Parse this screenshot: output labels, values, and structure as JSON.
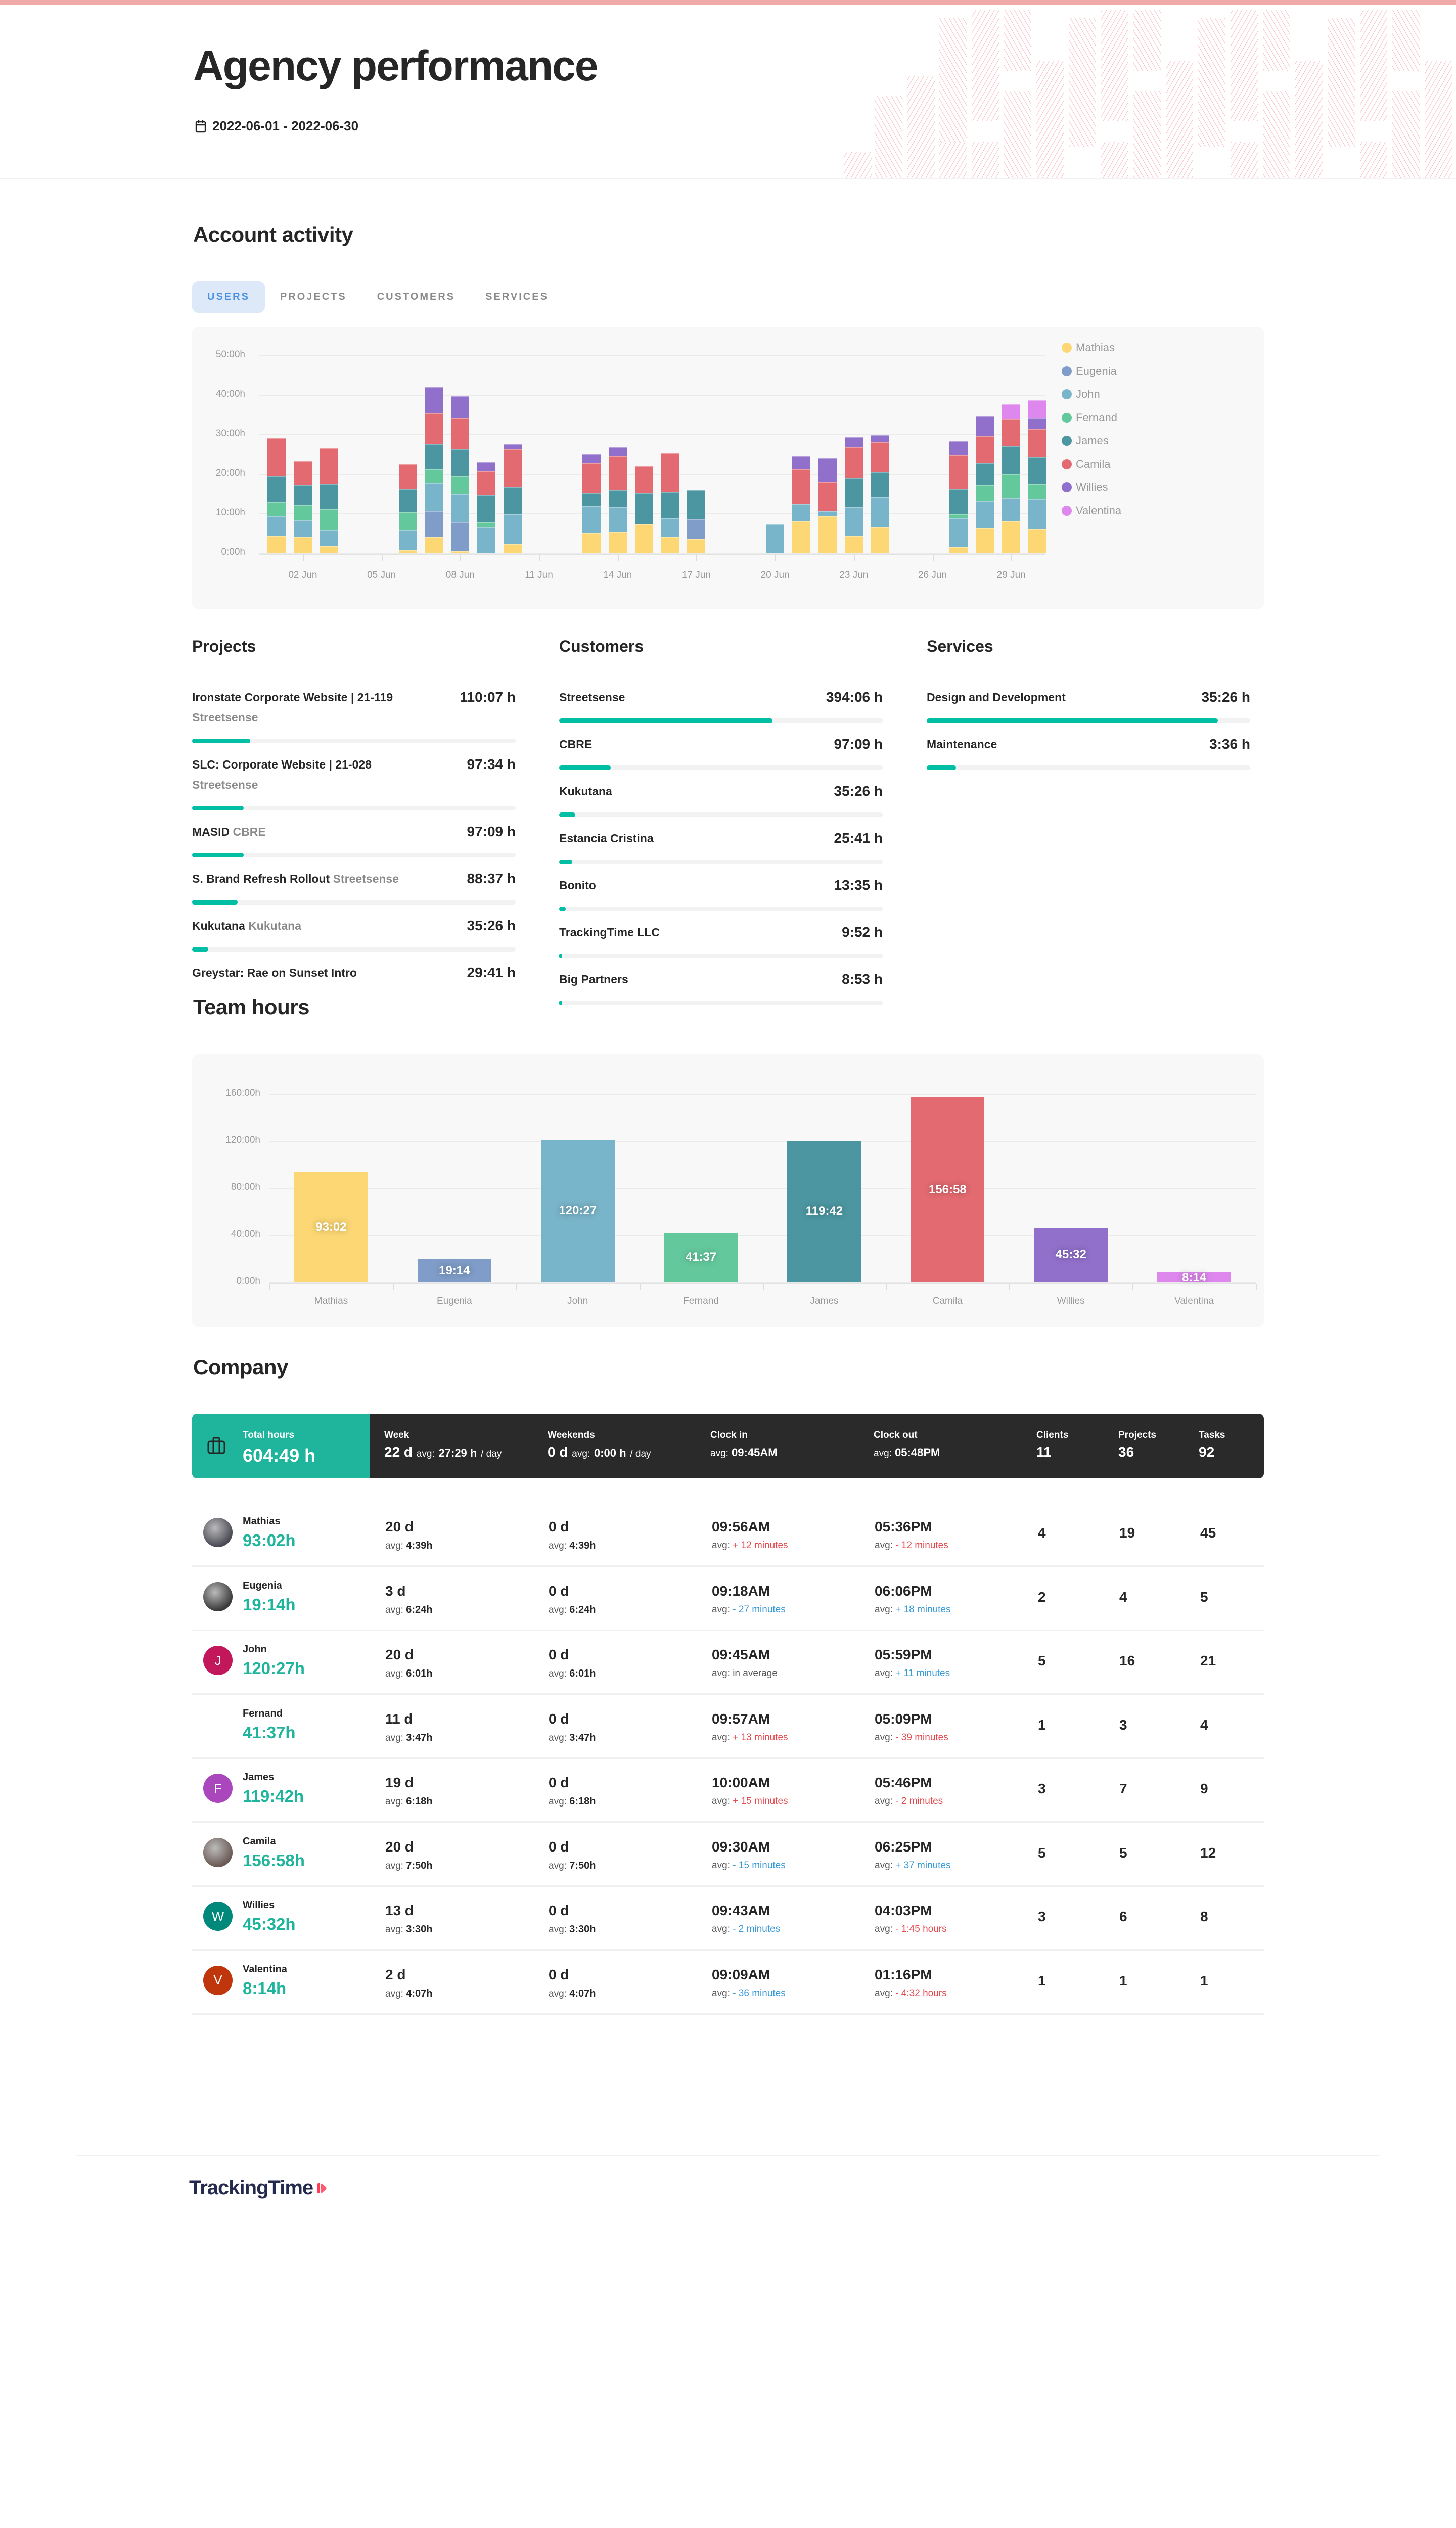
{
  "header": {
    "title": "Agency performance",
    "date_range": "2022-06-01 - 2022-06-30",
    "accent_color": "#f0aaaa"
  },
  "account_activity": {
    "title": "Account activity",
    "tabs": [
      {
        "label": "USERS",
        "active": true
      },
      {
        "label": "PROJECTS",
        "active": false
      },
      {
        "label": "CUSTOMERS",
        "active": false
      },
      {
        "label": "SERVICES",
        "active": false
      }
    ]
  },
  "lists": {
    "projects": {
      "title": "Projects",
      "items": [
        {
          "name": "Ironstate Corporate Website | 21-119",
          "client": "Streetsense",
          "value": "110:07 h",
          "pct": 18
        },
        {
          "name": "SLC: Corporate Website | 21-028",
          "client": "Streetsense",
          "value": "97:34 h",
          "pct": 16
        },
        {
          "name": "MASID",
          "client": "CBRE",
          "value": "97:09 h",
          "pct": 16
        },
        {
          "name": "S. Brand Refresh Rollout",
          "client": "Streetsense",
          "value": "88:37 h",
          "pct": 14
        },
        {
          "name": "Kukutana",
          "client": "Kukutana",
          "value": "35:26 h",
          "pct": 5
        },
        {
          "name": "Greystar: Rae on Sunset Intro",
          "client": "",
          "value": "29:41 h",
          "pct": 4
        }
      ]
    },
    "customers": {
      "title": "Customers",
      "items": [
        {
          "name": "Streetsense",
          "value": "394:06 h",
          "pct": 66
        },
        {
          "name": "CBRE",
          "value": "97:09 h",
          "pct": 16
        },
        {
          "name": "Kukutana",
          "value": "35:26 h",
          "pct": 5
        },
        {
          "name": "Estancia Cristina",
          "value": "25:41 h",
          "pct": 4
        },
        {
          "name": "Bonito",
          "value": "13:35 h",
          "pct": 2
        },
        {
          "name": "TrackingTime LLC",
          "value": "9:52 h",
          "pct": 1
        },
        {
          "name": "Big Partners",
          "value": "8:53 h",
          "pct": 1
        }
      ]
    },
    "services": {
      "title": "Services",
      "items": [
        {
          "name": "Design and Development",
          "value": "35:26 h",
          "pct": 90
        },
        {
          "name": "Maintenance",
          "value": "3:36 h",
          "pct": 9
        }
      ]
    }
  },
  "team_hours": {
    "title": "Team hours"
  },
  "company": {
    "title": "Company",
    "summary": {
      "total_label": "Total hours",
      "total_value": "604:49 h",
      "week_label": "Week",
      "week_days": "22 d",
      "week_avg_prefix": "avg:",
      "week_avg": "27:29 h",
      "week_avg_suffix": "/ day",
      "weekends_label": "Weekends",
      "weekends_days": "0 d",
      "weekends_avg_prefix": "avg:",
      "weekends_avg": "0:00 h",
      "weekends_avg_suffix": "/ day",
      "clockin_label": "Clock in",
      "clockin_prefix": "avg:",
      "clockin_value": "09:45AM",
      "clockout_label": "Clock out",
      "clockout_prefix": "avg:",
      "clockout_value": "05:48PM",
      "clients_label": "Clients",
      "clients_value": "11",
      "projects_label": "Projects",
      "projects_value": "36",
      "tasks_label": "Tasks",
      "tasks_value": "92",
      "total_color": "#1fb59c",
      "bar_color": "#2a2a2a"
    },
    "avg_prefix": "avg:",
    "users": [
      {
        "name": "Mathias",
        "hours": "93:02h",
        "avatar": "photo",
        "avatar_letter": "",
        "avatar_color": "#4a4a55",
        "week_days": "20 d",
        "week_avg": "4:39h",
        "weekend_days": "0 d",
        "weekend_avg": "4:39h",
        "clock_in": "09:56AM",
        "clock_in_diff": "+ 12 minutes",
        "clock_in_tone": "red",
        "clock_out": "05:36PM",
        "clock_out_diff": "- 12 minutes",
        "clock_out_tone": "red",
        "clients": "4",
        "projects": "19",
        "tasks": "45"
      },
      {
        "name": "Eugenia",
        "hours": "19:14h",
        "avatar": "photo",
        "avatar_letter": "",
        "avatar_color": "#3a3a3a",
        "week_days": "3 d",
        "week_avg": "6:24h",
        "weekend_days": "0 d",
        "weekend_avg": "6:24h",
        "clock_in": "09:18AM",
        "clock_in_diff": "- 27 minutes",
        "clock_in_tone": "blue",
        "clock_out": "06:06PM",
        "clock_out_diff": "+ 18 minutes",
        "clock_out_tone": "blue",
        "clients": "2",
        "projects": "4",
        "tasks": "5"
      },
      {
        "name": "John",
        "hours": "120:27h",
        "avatar": "letter",
        "avatar_letter": "J",
        "avatar_color": "#c2185b",
        "week_days": "20 d",
        "week_avg": "6:01h",
        "weekend_days": "0 d",
        "weekend_avg": "6:01h",
        "clock_in": "09:45AM",
        "clock_in_diff": "in average",
        "clock_in_tone": "neutral",
        "clock_out": "05:59PM",
        "clock_out_diff": "+ 11 minutes",
        "clock_out_tone": "blue",
        "clients": "5",
        "projects": "16",
        "tasks": "21"
      },
      {
        "name": "Fernand",
        "hours": "41:37h",
        "avatar": "none",
        "avatar_letter": "",
        "avatar_color": "transparent",
        "week_days": "11 d",
        "week_avg": "3:47h",
        "weekend_days": "0 d",
        "weekend_avg": "3:47h",
        "clock_in": "09:57AM",
        "clock_in_diff": "+ 13 minutes",
        "clock_in_tone": "red",
        "clock_out": "05:09PM",
        "clock_out_diff": "- 39 minutes",
        "clock_out_tone": "red",
        "clients": "1",
        "projects": "3",
        "tasks": "4"
      },
      {
        "name": "James",
        "hours": "119:42h",
        "avatar": "letter",
        "avatar_letter": "F",
        "avatar_color": "#ab47bc",
        "week_days": "19 d",
        "week_avg": "6:18h",
        "weekend_days": "0 d",
        "weekend_avg": "6:18h",
        "clock_in": "10:00AM",
        "clock_in_diff": "+ 15 minutes",
        "clock_in_tone": "red",
        "clock_out": "05:46PM",
        "clock_out_diff": "- 2 minutes",
        "clock_out_tone": "red",
        "clients": "3",
        "projects": "7",
        "tasks": "9"
      },
      {
        "name": "Camila",
        "hours": "156:58h",
        "avatar": "photo",
        "avatar_letter": "",
        "avatar_color": "#6b5a55",
        "week_days": "20 d",
        "week_avg": "7:50h",
        "weekend_days": "0 d",
        "weekend_avg": "7:50h",
        "clock_in": "09:30AM",
        "clock_in_diff": "- 15 minutes",
        "clock_in_tone": "blue",
        "clock_out": "06:25PM",
        "clock_out_diff": "+ 37 minutes",
        "clock_out_tone": "blue",
        "clients": "5",
        "projects": "5",
        "tasks": "12"
      },
      {
        "name": "Willies",
        "hours": "45:32h",
        "avatar": "letter",
        "avatar_letter": "W",
        "avatar_color": "#00897b",
        "week_days": "13 d",
        "week_avg": "3:30h",
        "weekend_days": "0 d",
        "weekend_avg": "3:30h",
        "clock_in": "09:43AM",
        "clock_in_diff": "- 2 minutes",
        "clock_in_tone": "blue",
        "clock_out": "04:03PM",
        "clock_out_diff": "- 1:45 hours",
        "clock_out_tone": "red",
        "clients": "3",
        "projects": "6",
        "tasks": "8"
      },
      {
        "name": "Valentina",
        "hours": "8:14h",
        "avatar": "letter",
        "avatar_letter": "V",
        "avatar_color": "#bf360c",
        "week_days": "2 d",
        "week_avg": "4:07h",
        "weekend_days": "0 d",
        "weekend_avg": "4:07h",
        "clock_in": "09:09AM",
        "clock_in_diff": "- 36 minutes",
        "clock_in_tone": "blue",
        "clock_out": "01:16PM",
        "clock_out_diff": "- 4:32 hours",
        "clock_out_tone": "red",
        "clients": "1",
        "projects": "1",
        "tasks": "1"
      }
    ]
  },
  "footer": {
    "logo_text": "TrackingTime"
  },
  "chart_data": [
    {
      "type": "bar",
      "stacked": true,
      "title": "Account activity (Users)",
      "xlabel": "",
      "ylabel": "",
      "ylim": [
        0,
        50
      ],
      "yticks": [
        "0:00h",
        "10:00h",
        "20:00h",
        "30:00h",
        "40:00h",
        "50:00h"
      ],
      "xtick_labels": [
        "02 Jun",
        "05 Jun",
        "08 Jun",
        "11 Jun",
        "14 Jun",
        "17 Jun",
        "20 Jun",
        "23 Jun",
        "26 Jun",
        "29 Jun"
      ],
      "grid": true,
      "legend_position": "right",
      "categories": [
        "01 Jun",
        "02 Jun",
        "03 Jun",
        "04 Jun",
        "05 Jun",
        "06 Jun",
        "07 Jun",
        "08 Jun",
        "09 Jun",
        "10 Jun",
        "11 Jun",
        "12 Jun",
        "13 Jun",
        "14 Jun",
        "15 Jun",
        "16 Jun",
        "17 Jun",
        "18 Jun",
        "19 Jun",
        "20 Jun",
        "21 Jun",
        "22 Jun",
        "23 Jun",
        "24 Jun",
        "25 Jun",
        "26 Jun",
        "27 Jun",
        "28 Jun",
        "29 Jun",
        "30 Jun"
      ],
      "series": [
        {
          "name": "Mathias",
          "color": "#fcd774",
          "values": [
            4.2,
            3.9,
            1.8,
            0,
            0,
            0.8,
            4.0,
            0.5,
            0,
            2.3,
            0,
            0,
            4.9,
            5.2,
            7.2,
            4.0,
            3.3,
            0,
            0,
            0,
            7.9,
            9.2,
            4.1,
            6.6,
            0,
            0,
            1.6,
            6.1,
            7.9,
            6.0
          ]
        },
        {
          "name": "Eugenia",
          "color": "#7f9dc8",
          "values": [
            0,
            0,
            0,
            0,
            0,
            0,
            6.6,
            7.3,
            0,
            0,
            0,
            0,
            0,
            0,
            0,
            0,
            5.3,
            0,
            0,
            0,
            0,
            0,
            0,
            0,
            0,
            0,
            0,
            0,
            0,
            0
          ]
        },
        {
          "name": "John",
          "color": "#79b5ca",
          "values": [
            5.2,
            4.3,
            3.8,
            0,
            0,
            4.8,
            7.0,
            7.0,
            6.6,
            7.5,
            0,
            0,
            7.0,
            6.4,
            0,
            4.7,
            0,
            0,
            0,
            7.3,
            4.6,
            1.4,
            7.6,
            7.5,
            0,
            0,
            7.2,
            7.0,
            6.1,
            7.6
          ]
        },
        {
          "name": "Fernand",
          "color": "#64c89d",
          "values": [
            3.6,
            4.0,
            5.4,
            0,
            0,
            4.8,
            3.6,
            4.6,
            1.2,
            0,
            0,
            0,
            0,
            0,
            0,
            0,
            0,
            0,
            0,
            0,
            0,
            0,
            0,
            0,
            0,
            0,
            0.9,
            4.0,
            6.0,
            3.8
          ]
        },
        {
          "name": "James",
          "color": "#4b96a0",
          "values": [
            6.5,
            4.8,
            6.5,
            0,
            0,
            5.7,
            6.4,
            6.7,
            6.7,
            6.7,
            0,
            0,
            3.1,
            4.2,
            7.9,
            6.7,
            7.3,
            0,
            0,
            0,
            0,
            0,
            7.2,
            6.3,
            0,
            0,
            6.5,
            5.7,
            7.1,
            7.0
          ]
        },
        {
          "name": "Camila",
          "color": "#e36a70",
          "values": [
            9.5,
            6.3,
            9.1,
            0,
            0,
            6.3,
            7.8,
            8.0,
            6.2,
            9.8,
            0,
            0,
            7.7,
            8.8,
            6.8,
            9.8,
            0,
            0,
            0,
            0,
            8.8,
            7.4,
            7.8,
            7.5,
            0,
            0,
            8.5,
            6.8,
            6.9,
            7.0
          ]
        },
        {
          "name": "Willies",
          "color": "#9170cb",
          "values": [
            0,
            0,
            0,
            0,
            0,
            0,
            6.5,
            5.5,
            2.4,
            1.2,
            0,
            0,
            2.4,
            2.2,
            0,
            0,
            0,
            0,
            0,
            0,
            3.3,
            6.1,
            2.7,
            1.8,
            0,
            0,
            3.5,
            5.1,
            0,
            2.8
          ]
        },
        {
          "name": "Valentina",
          "color": "#de88ee",
          "values": [
            0,
            0,
            0,
            0,
            0,
            0,
            0,
            0,
            0,
            0,
            0,
            0,
            0,
            0,
            0,
            0,
            0,
            0,
            0,
            0,
            0,
            0,
            0,
            0,
            0,
            0,
            0,
            0,
            3.7,
            4.5
          ]
        }
      ]
    },
    {
      "type": "bar",
      "title": "Team hours",
      "xlabel": "",
      "ylabel": "",
      "ylim": [
        0,
        160
      ],
      "yticks": [
        "0:00h",
        "40:00h",
        "80:00h",
        "120:00h",
        "160:00h"
      ],
      "grid": true,
      "categories": [
        "Mathias",
        "Eugenia",
        "John",
        "Fernand",
        "James",
        "Camila",
        "Willies",
        "Valentina"
      ],
      "values": [
        93.03,
        19.23,
        120.45,
        41.62,
        119.7,
        156.97,
        45.53,
        8.23
      ],
      "labels": [
        "93:02",
        "19:14",
        "120:27",
        "41:37",
        "119:42",
        "156:58",
        "45:32",
        "8:14"
      ],
      "colors": [
        "#fcd774",
        "#7f9dc8",
        "#79b5ca",
        "#64c89d",
        "#4b96a0",
        "#e36a70",
        "#9170cb",
        "#de88ee"
      ]
    }
  ]
}
